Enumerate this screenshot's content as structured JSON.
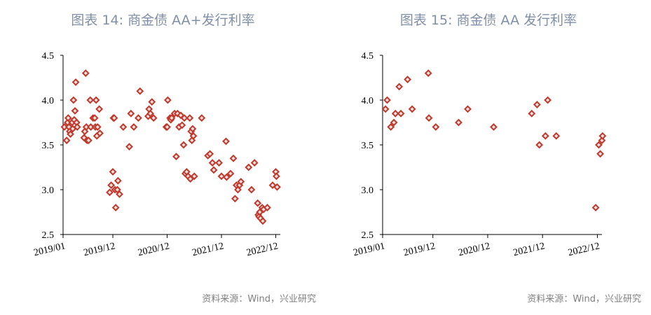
{
  "colors": {
    "marker": "#c0392b",
    "marker_fill": "#e8e0e0",
    "title": "#7f8fa6",
    "source": "#7f7f7f"
  },
  "chart_data": [
    {
      "type": "scatter",
      "title": "图表 14: 商金债 AA+发行利率",
      "source": "资料来源：Wind，兴业研究",
      "xlabel": "",
      "ylabel": "",
      "x_ticks": [
        "2019/01",
        "2019/12",
        "2020/12",
        "2021/12",
        "2022/12"
      ],
      "y_ticks": [
        "2.5",
        "3.0",
        "3.5",
        "4.0",
        "4.5"
      ],
      "ylim": [
        2.5,
        4.5
      ],
      "xlim": [
        "2019-01",
        "2023-01"
      ],
      "grid": false,
      "marker": "diamond",
      "points": [
        {
          "x": "2019-01-10",
          "y": 3.7
        },
        {
          "x": "2019-01-25",
          "y": 3.55
        },
        {
          "x": "2019-02-01",
          "y": 3.75
        },
        {
          "x": "2019-02-05",
          "y": 3.8
        },
        {
          "x": "2019-02-10",
          "y": 3.7
        },
        {
          "x": "2019-02-15",
          "y": 3.65
        },
        {
          "x": "2019-02-20",
          "y": 3.62
        },
        {
          "x": "2019-03-01",
          "y": 3.75
        },
        {
          "x": "2019-03-05",
          "y": 3.68
        },
        {
          "x": "2019-03-10",
          "y": 4.0
        },
        {
          "x": "2019-03-15",
          "y": 3.78
        },
        {
          "x": "2019-03-20",
          "y": 3.88
        },
        {
          "x": "2019-03-25",
          "y": 4.2
        },
        {
          "x": "2019-04-01",
          "y": 3.75
        },
        {
          "x": "2019-04-05",
          "y": 3.7
        },
        {
          "x": "2019-05-20",
          "y": 3.58
        },
        {
          "x": "2019-05-25",
          "y": 3.65
        },
        {
          "x": "2019-06-01",
          "y": 4.3
        },
        {
          "x": "2019-06-05",
          "y": 3.7
        },
        {
          "x": "2019-06-10",
          "y": 3.55
        },
        {
          "x": "2019-06-20",
          "y": 3.55
        },
        {
          "x": "2019-07-01",
          "y": 4.0
        },
        {
          "x": "2019-07-05",
          "y": 3.7
        },
        {
          "x": "2019-07-20",
          "y": 3.8
        },
        {
          "x": "2019-08-01",
          "y": 3.8
        },
        {
          "x": "2019-08-05",
          "y": 3.7
        },
        {
          "x": "2019-08-10",
          "y": 4.0
        },
        {
          "x": "2019-08-15",
          "y": 3.6
        },
        {
          "x": "2019-08-20",
          "y": 3.7
        },
        {
          "x": "2019-09-01",
          "y": 3.9
        },
        {
          "x": "2019-09-05",
          "y": 3.63
        },
        {
          "x": "2019-11-10",
          "y": 2.97
        },
        {
          "x": "2019-11-20",
          "y": 3.05
        },
        {
          "x": "2019-12-01",
          "y": 3.2
        },
        {
          "x": "2019-12-05",
          "y": 3.8
        },
        {
          "x": "2019-12-10",
          "y": 3.8
        },
        {
          "x": "2019-12-15",
          "y": 3.0
        },
        {
          "x": "2019-12-20",
          "y": 2.8
        },
        {
          "x": "2020-01-01",
          "y": 3.0
        },
        {
          "x": "2020-01-05",
          "y": 3.1
        },
        {
          "x": "2020-01-15",
          "y": 2.95
        },
        {
          "x": "2020-02-10",
          "y": 3.7
        },
        {
          "x": "2020-03-20",
          "y": 3.48
        },
        {
          "x": "2020-04-01",
          "y": 3.85
        },
        {
          "x": "2020-04-20",
          "y": 3.7
        },
        {
          "x": "2020-05-20",
          "y": 3.8
        },
        {
          "x": "2020-06-01",
          "y": 4.1
        },
        {
          "x": "2020-07-25",
          "y": 3.82
        },
        {
          "x": "2020-08-01",
          "y": 3.9
        },
        {
          "x": "2020-08-10",
          "y": 3.85
        },
        {
          "x": "2020-08-20",
          "y": 3.98
        },
        {
          "x": "2020-09-01",
          "y": 3.8
        },
        {
          "x": "2020-11-25",
          "y": 3.7
        },
        {
          "x": "2020-12-01",
          "y": 3.7
        },
        {
          "x": "2020-12-05",
          "y": 4.0
        },
        {
          "x": "2020-12-20",
          "y": 3.8
        },
        {
          "x": "2020-12-25",
          "y": 3.78
        },
        {
          "x": "2021-01-01",
          "y": 3.8
        },
        {
          "x": "2021-01-20",
          "y": 3.85
        },
        {
          "x": "2021-02-01",
          "y": 3.37
        },
        {
          "x": "2021-02-10",
          "y": 3.85
        },
        {
          "x": "2021-02-20",
          "y": 3.7
        },
        {
          "x": "2021-03-01",
          "y": 3.83
        },
        {
          "x": "2021-03-10",
          "y": 3.72
        },
        {
          "x": "2021-03-20",
          "y": 3.5
        },
        {
          "x": "2021-03-25",
          "y": 3.8
        },
        {
          "x": "2021-04-01",
          "y": 3.18
        },
        {
          "x": "2021-04-10",
          "y": 3.2
        },
        {
          "x": "2021-04-20",
          "y": 3.15
        },
        {
          "x": "2021-05-01",
          "y": 3.8
        },
        {
          "x": "2021-05-05",
          "y": 3.12
        },
        {
          "x": "2021-05-10",
          "y": 3.65
        },
        {
          "x": "2021-05-15",
          "y": 3.55
        },
        {
          "x": "2021-05-20",
          "y": 3.68
        },
        {
          "x": "2021-05-25",
          "y": 3.6
        },
        {
          "x": "2021-06-01",
          "y": 3.15
        },
        {
          "x": "2021-07-20",
          "y": 3.8
        },
        {
          "x": "2021-09-01",
          "y": 3.38
        },
        {
          "x": "2021-09-15",
          "y": 3.4
        },
        {
          "x": "2021-10-01",
          "y": 3.3
        },
        {
          "x": "2021-10-10",
          "y": 3.22
        },
        {
          "x": "2021-11-15",
          "y": 3.3
        },
        {
          "x": "2021-12-01",
          "y": 3.15
        },
        {
          "x": "2022-01-01",
          "y": 3.54
        },
        {
          "x": "2022-01-05",
          "y": 3.14
        },
        {
          "x": "2022-02-01",
          "y": 3.18
        },
        {
          "x": "2022-02-20",
          "y": 3.35
        },
        {
          "x": "2022-03-01",
          "y": 2.9
        },
        {
          "x": "2022-03-10",
          "y": 3.05
        },
        {
          "x": "2022-03-20",
          "y": 3.0
        },
        {
          "x": "2022-04-01",
          "y": 3.05
        },
        {
          "x": "2022-04-10",
          "y": 3.09
        },
        {
          "x": "2022-06-01",
          "y": 3.25
        },
        {
          "x": "2022-06-20",
          "y": 3.0
        },
        {
          "x": "2022-07-10",
          "y": 3.3
        },
        {
          "x": "2022-08-01",
          "y": 2.85
        },
        {
          "x": "2022-08-05",
          "y": 2.72
        },
        {
          "x": "2022-08-10",
          "y": 2.7
        },
        {
          "x": "2022-08-15",
          "y": 2.75
        },
        {
          "x": "2022-08-20",
          "y": 2.68
        },
        {
          "x": "2022-09-01",
          "y": 2.8
        },
        {
          "x": "2022-09-05",
          "y": 2.65
        },
        {
          "x": "2022-09-10",
          "y": 2.78
        },
        {
          "x": "2022-10-05",
          "y": 2.8
        },
        {
          "x": "2022-11-10",
          "y": 3.05
        },
        {
          "x": "2022-12-01",
          "y": 3.2
        },
        {
          "x": "2022-12-05",
          "y": 3.15
        },
        {
          "x": "2022-12-10",
          "y": 3.03
        }
      ]
    },
    {
      "type": "scatter",
      "title": "图表 15: 商金债 AA 发行利率",
      "source": "资料来源：Wind，兴业研究",
      "xlabel": "",
      "ylabel": "",
      "x_ticks": [
        "2019/01",
        "2019/12",
        "2020/12",
        "2021/12",
        "2022/12"
      ],
      "y_ticks": [
        "2.5",
        "3.0",
        "3.5",
        "4.0",
        "4.5"
      ],
      "ylim": [
        2.5,
        4.5
      ],
      "xlim": [
        "2019-01",
        "2023-01"
      ],
      "grid": false,
      "marker": "diamond",
      "points": [
        {
          "x": "2019-01-20",
          "y": 3.9
        },
        {
          "x": "2019-02-01",
          "y": 4.0
        },
        {
          "x": "2019-02-25",
          "y": 3.7
        },
        {
          "x": "2019-03-15",
          "y": 3.75
        },
        {
          "x": "2019-03-25",
          "y": 3.85
        },
        {
          "x": "2019-04-20",
          "y": 4.15
        },
        {
          "x": "2019-05-01",
          "y": 3.85
        },
        {
          "x": "2019-06-15",
          "y": 4.23
        },
        {
          "x": "2019-07-15",
          "y": 3.9
        },
        {
          "x": "2019-11-01",
          "y": 4.3
        },
        {
          "x": "2019-11-05",
          "y": 3.8
        },
        {
          "x": "2019-12-20",
          "y": 3.7
        },
        {
          "x": "2020-05-20",
          "y": 3.75
        },
        {
          "x": "2020-07-20",
          "y": 3.9
        },
        {
          "x": "2021-01-10",
          "y": 3.7
        },
        {
          "x": "2021-09-20",
          "y": 3.85
        },
        {
          "x": "2021-10-25",
          "y": 3.95
        },
        {
          "x": "2021-11-10",
          "y": 3.5
        },
        {
          "x": "2021-12-20",
          "y": 3.6
        },
        {
          "x": "2022-01-05",
          "y": 4.0
        },
        {
          "x": "2022-03-01",
          "y": 3.6
        },
        {
          "x": "2022-11-20",
          "y": 2.8
        },
        {
          "x": "2022-12-10",
          "y": 3.5
        },
        {
          "x": "2022-12-20",
          "y": 3.4
        },
        {
          "x": "2023-01-01",
          "y": 3.55
        },
        {
          "x": "2023-01-05",
          "y": 3.6
        }
      ]
    }
  ]
}
